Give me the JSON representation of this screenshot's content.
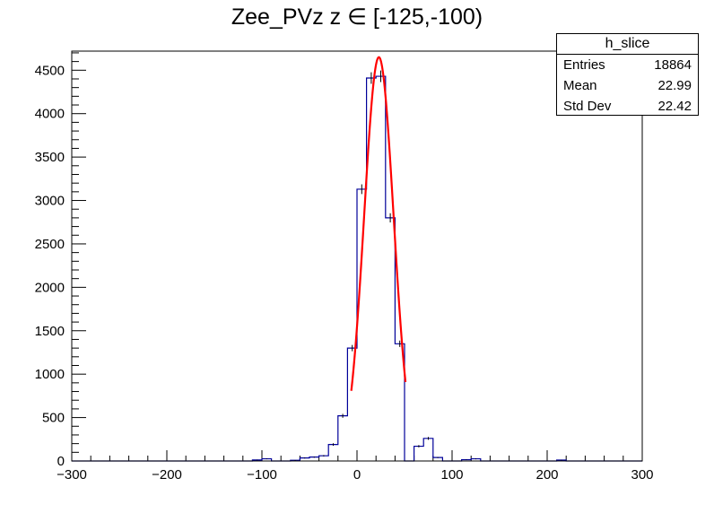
{
  "chart_data": {
    "type": "histogram",
    "title": "Zee_PVz z  ∈ [-125,-100)",
    "xlabel": "",
    "ylabel": "",
    "xlim": [
      -300,
      300
    ],
    "ylim": [
      0,
      4720
    ],
    "x_ticks": [
      -300,
      -200,
      -100,
      0,
      100,
      200,
      300
    ],
    "y_ticks": [
      0,
      500,
      1000,
      1500,
      2000,
      2500,
      3000,
      3500,
      4000,
      4500
    ],
    "bin_width": 10,
    "bins": [
      {
        "x": -110,
        "value": 12
      },
      {
        "x": -100,
        "value": 25
      },
      {
        "x": -70,
        "value": 8
      },
      {
        "x": -60,
        "value": 35
      },
      {
        "x": -50,
        "value": 45
      },
      {
        "x": -40,
        "value": 60
      },
      {
        "x": -30,
        "value": 190
      },
      {
        "x": -20,
        "value": 520
      },
      {
        "x": -10,
        "value": 1300
      },
      {
        "x": 0,
        "value": 3130
      },
      {
        "x": 10,
        "value": 4410
      },
      {
        "x": 20,
        "value": 4430
      },
      {
        "x": 30,
        "value": 2800
      },
      {
        "x": 40,
        "value": 1350
      },
      {
        "x": 60,
        "value": 170
      },
      {
        "x": 70,
        "value": 260
      },
      {
        "x": 80,
        "value": 40
      },
      {
        "x": 110,
        "value": 15
      },
      {
        "x": 120,
        "value": 25
      },
      {
        "x": 210,
        "value": 10
      }
    ],
    "fit": {
      "type": "gaussian",
      "amplitude": 4650,
      "mean": 23,
      "sigma": 15.5,
      "range": [
        -6,
        51
      ],
      "color": "#ff0000"
    },
    "histogram_color": "#000099",
    "stats": {
      "name": "h_slice",
      "rows": [
        {
          "label": "Entries",
          "value": "18864"
        },
        {
          "label": "Mean",
          "value": "22.99"
        },
        {
          "label": "Std Dev",
          "value": "22.42"
        }
      ]
    }
  }
}
